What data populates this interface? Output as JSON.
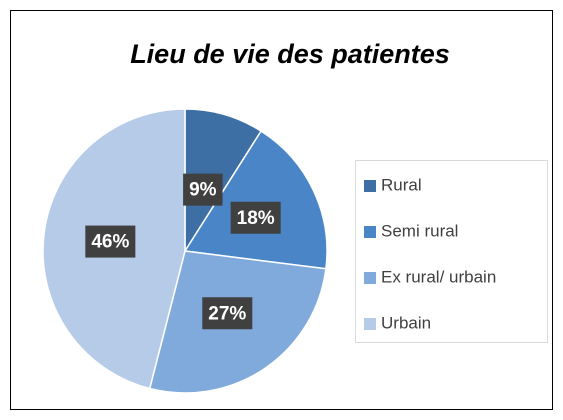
{
  "chart_data": {
    "type": "pie",
    "title": "Lieu de vie des patientes",
    "categories": [
      "Rural",
      "Semi rural",
      "Ex rural/ urbain",
      "Urbain"
    ],
    "values": [
      9,
      18,
      27,
      46
    ],
    "value_labels": [
      "9%",
      "18%",
      "27%",
      "46%"
    ],
    "colors": [
      "#3e6fa4",
      "#4a86c7",
      "#80aadb",
      "#b5cbe8"
    ],
    "legend": "right"
  }
}
